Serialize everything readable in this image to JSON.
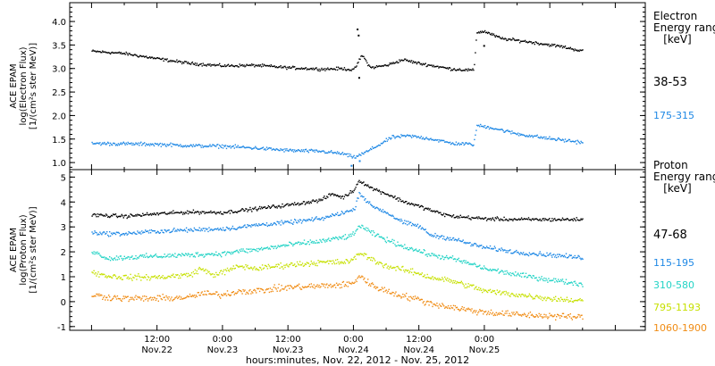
{
  "chart_data": [
    {
      "type": "scatter",
      "panel": "electron",
      "ylabel_lines": [
        "ACE EPAM",
        "log(Electron Flux)",
        "[1/(cm²s ster MeV)]"
      ],
      "ylim": [
        0.85,
        4.4
      ],
      "yticks": [
        "1.0",
        "1.5",
        "2.0",
        "2.5",
        "3.0",
        "3.5",
        "4.0"
      ],
      "ytick_values": [
        1.0,
        1.5,
        2.0,
        2.5,
        3.0,
        3.5,
        4.0
      ],
      "legend_title_lines": [
        "Electron",
        "Energy ranges",
        "[keV]"
      ],
      "series": [
        {
          "name": "38-53",
          "color": "#000000",
          "points": [
            [
              0,
              3.38
            ],
            [
              6,
              3.33
            ],
            [
              12,
              3.22
            ],
            [
              18,
              3.12
            ],
            [
              24,
              3.07
            ],
            [
              30,
              3.08
            ],
            [
              36,
              3.03
            ],
            [
              42,
              3.0
            ],
            [
              46,
              3.01
            ],
            [
              48,
              2.98
            ],
            [
              49.5,
              3.3
            ],
            [
              51,
              3.03
            ],
            [
              54,
              3.08
            ],
            [
              57,
              3.2
            ],
            [
              60,
              3.12
            ],
            [
              66,
              3.0
            ],
            [
              70,
              2.97
            ],
            [
              70.5,
              3.78
            ],
            [
              72,
              3.8
            ],
            [
              75,
              3.65
            ],
            [
              80,
              3.58
            ],
            [
              86,
              3.48
            ],
            [
              90,
              3.38
            ]
          ],
          "outliers": [
            [
              48.6,
              3.85
            ],
            [
              48.8,
              3.72
            ],
            [
              48.9,
              2.82
            ],
            [
              71.8,
              3.5
            ]
          ]
        },
        {
          "name": "175-315",
          "color": "#1e88e5",
          "points": [
            [
              0,
              1.42
            ],
            [
              6,
              1.41
            ],
            [
              12,
              1.4
            ],
            [
              18,
              1.37
            ],
            [
              24,
              1.36
            ],
            [
              30,
              1.32
            ],
            [
              36,
              1.27
            ],
            [
              42,
              1.25
            ],
            [
              46,
              1.2
            ],
            [
              48,
              1.12
            ],
            [
              50,
              1.22
            ],
            [
              52,
              1.35
            ],
            [
              55,
              1.55
            ],
            [
              58,
              1.58
            ],
            [
              62,
              1.52
            ],
            [
              66,
              1.42
            ],
            [
              70,
              1.4
            ],
            [
              70.5,
              1.8
            ],
            [
              73,
              1.76
            ],
            [
              78,
              1.62
            ],
            [
              84,
              1.52
            ],
            [
              90,
              1.44
            ]
          ],
          "outliers": [
            [
              47.5,
              0.95
            ],
            [
              49.0,
              1.05
            ]
          ]
        }
      ]
    },
    {
      "type": "scatter",
      "panel": "proton",
      "ylabel_lines": [
        "ACE EPAM",
        "log(Proton Flux)",
        "[1/(cm²s ster MeV)]"
      ],
      "ylim": [
        -1.15,
        5.3
      ],
      "yticks": [
        "-1",
        "0",
        "1",
        "2",
        "3",
        "4",
        "5"
      ],
      "ytick_values": [
        -1,
        0,
        1,
        2,
        3,
        4,
        5
      ],
      "legend_title_lines": [
        "Proton",
        "Energy ranges",
        "[keV]"
      ],
      "series": [
        {
          "name": "47-68",
          "color": "#000000",
          "points": [
            [
              0,
              3.5
            ],
            [
              6,
              3.45
            ],
            [
              12,
              3.55
            ],
            [
              18,
              3.62
            ],
            [
              24,
              3.6
            ],
            [
              30,
              3.75
            ],
            [
              36,
              3.9
            ],
            [
              42,
              4.1
            ],
            [
              44,
              4.35
            ],
            [
              46,
              4.2
            ],
            [
              48,
              4.5
            ],
            [
              49,
              4.9
            ],
            [
              51,
              4.6
            ],
            [
              54,
              4.35
            ],
            [
              57,
              4.05
            ],
            [
              60,
              3.85
            ],
            [
              64,
              3.55
            ],
            [
              66,
              3.45
            ],
            [
              72,
              3.35
            ],
            [
              78,
              3.32
            ],
            [
              84,
              3.32
            ],
            [
              90,
              3.32
            ]
          ]
        },
        {
          "name": "115-195",
          "color": "#1e88e5",
          "points": [
            [
              0,
              2.8
            ],
            [
              3,
              2.75
            ],
            [
              6,
              2.75
            ],
            [
              12,
              2.85
            ],
            [
              18,
              2.9
            ],
            [
              24,
              2.95
            ],
            [
              27,
              3.0
            ],
            [
              30,
              3.1
            ],
            [
              36,
              3.2
            ],
            [
              42,
              3.35
            ],
            [
              46,
              3.6
            ],
            [
              48,
              3.7
            ],
            [
              49,
              4.4
            ],
            [
              51,
              3.9
            ],
            [
              54,
              3.6
            ],
            [
              57,
              3.2
            ],
            [
              60,
              3.05
            ],
            [
              62,
              2.7
            ],
            [
              66,
              2.55
            ],
            [
              70,
              2.3
            ],
            [
              72,
              2.2
            ],
            [
              78,
              2.0
            ],
            [
              84,
              1.9
            ],
            [
              90,
              1.78
            ]
          ]
        },
        {
          "name": "310-580",
          "color": "#22d3c5",
          "points": [
            [
              0,
              2.05
            ],
            [
              3,
              1.75
            ],
            [
              6,
              1.8
            ],
            [
              12,
              1.85
            ],
            [
              18,
              1.9
            ],
            [
              24,
              1.95
            ],
            [
              27,
              2.05
            ],
            [
              30,
              2.1
            ],
            [
              36,
              2.3
            ],
            [
              42,
              2.45
            ],
            [
              46,
              2.6
            ],
            [
              48,
              2.7
            ],
            [
              49,
              3.1
            ],
            [
              51,
              2.8
            ],
            [
              54,
              2.5
            ],
            [
              57,
              2.25
            ],
            [
              60,
              2.05
            ],
            [
              62,
              1.9
            ],
            [
              66,
              1.75
            ],
            [
              70,
              1.5
            ],
            [
              72,
              1.35
            ],
            [
              78,
              1.1
            ],
            [
              84,
              0.9
            ],
            [
              90,
              0.72
            ]
          ]
        },
        {
          "name": "795-1193",
          "color": "#c6e000",
          "points": [
            [
              0,
              1.2
            ],
            [
              3,
              1.05
            ],
            [
              6,
              1.0
            ],
            [
              12,
              1.0
            ],
            [
              18,
              1.1
            ],
            [
              20,
              1.35
            ],
            [
              22,
              1.1
            ],
            [
              24,
              1.2
            ],
            [
              27,
              1.45
            ],
            [
              30,
              1.35
            ],
            [
              36,
              1.5
            ],
            [
              42,
              1.6
            ],
            [
              46,
              1.6
            ],
            [
              48,
              1.7
            ],
            [
              49,
              2.0
            ],
            [
              51,
              1.75
            ],
            [
              54,
              1.45
            ],
            [
              57,
              1.3
            ],
            [
              60,
              1.15
            ],
            [
              62,
              1.0
            ],
            [
              66,
              0.85
            ],
            [
              70,
              0.6
            ],
            [
              72,
              0.45
            ],
            [
              78,
              0.3
            ],
            [
              84,
              0.15
            ],
            [
              90,
              0.05
            ]
          ]
        },
        {
          "name": "1060-1900",
          "color": "#f08c14",
          "points": [
            [
              0,
              0.3
            ],
            [
              3,
              0.2
            ],
            [
              6,
              0.15
            ],
            [
              12,
              0.15
            ],
            [
              18,
              0.2
            ],
            [
              20,
              0.35
            ],
            [
              24,
              0.3
            ],
            [
              27,
              0.45
            ],
            [
              30,
              0.45
            ],
            [
              36,
              0.6
            ],
            [
              42,
              0.65
            ],
            [
              46,
              0.7
            ],
            [
              48,
              0.75
            ],
            [
              49,
              1.1
            ],
            [
              51,
              0.7
            ],
            [
              54,
              0.45
            ],
            [
              57,
              0.25
            ],
            [
              60,
              0.1
            ],
            [
              62,
              -0.05
            ],
            [
              66,
              -0.2
            ],
            [
              70,
              -0.35
            ],
            [
              72,
              -0.4
            ],
            [
              78,
              -0.5
            ],
            [
              84,
              -0.55
            ],
            [
              90,
              -0.6
            ]
          ]
        }
      ]
    }
  ],
  "x_axis": {
    "ticks": [
      {
        "t": 12,
        "time": "12:00",
        "date": "Nov.22"
      },
      {
        "t": 24,
        "time": "0:00",
        "date": "Nov.23"
      },
      {
        "t": 36,
        "time": "12:00",
        "date": "Nov.23"
      },
      {
        "t": 48,
        "time": "0:00",
        "date": "Nov.24"
      },
      {
        "t": 60,
        "time": "12:00",
        "date": "Nov.24"
      },
      {
        "t": 72,
        "time": "0:00",
        "date": "Nov.25"
      }
    ],
    "label": "hours:minutes, Nov. 22, 2012 - Nov. 25, 2012"
  }
}
